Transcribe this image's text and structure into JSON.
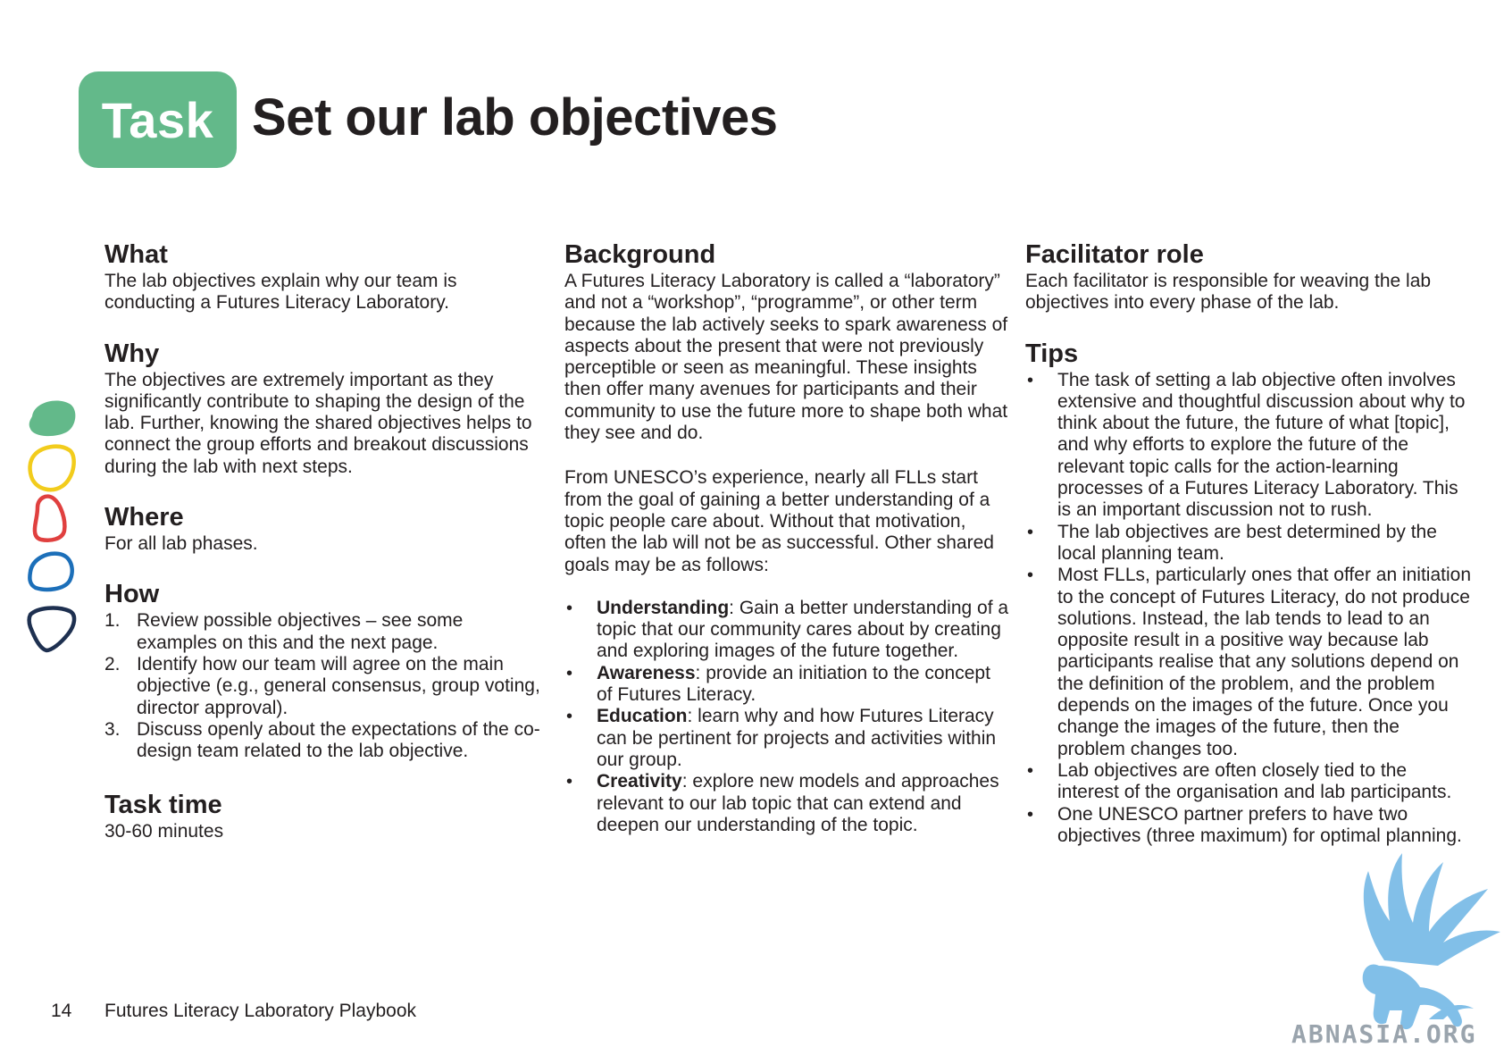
{
  "header": {
    "badge": "Task",
    "title": "Set our lab objectives"
  },
  "what": {
    "heading": "What",
    "text": "The lab objectives explain why our team is conducting a Futures Literacy Laboratory."
  },
  "why": {
    "heading": "Why",
    "text": "The objectives are extremely important as they significantly contribute to shaping the design of the lab. Further, knowing the shared objectives helps to connect the group efforts and breakout discussions during the lab with next steps."
  },
  "where": {
    "heading": "Where",
    "text": "For all lab phases."
  },
  "how": {
    "heading": "How",
    "items": [
      {
        "num": "1.",
        "text": "Review possible objectives – see some examples on this and the next page."
      },
      {
        "num": "2.",
        "text": "Identify how our team will agree on the main objective (e.g., general consensus, group voting, director approval)."
      },
      {
        "num": "3.",
        "text": "Discuss openly about the expectations of the co-design team related to the lab objective."
      }
    ]
  },
  "task_time": {
    "heading": "Task time",
    "text": "30-60 minutes"
  },
  "background": {
    "heading": "Background",
    "para1": "A Futures Literacy Laboratory is called a “laboratory” and not a “workshop”, “programme”, or other term because the lab actively seeks to spark awareness of aspects about the present that were not previously perceptible or seen as meaningful. These insights then offer many avenues for participants and their community to use the future more to shape both what they see and do.",
    "para2": "From UNESCO’s experience, nearly all FLLs start from the goal of gaining a better understanding of a topic people care about. Without that motivation, often the lab will not be as successful. Other shared goals may be as follows:",
    "bullet": "•",
    "items": [
      {
        "term": "Understanding",
        "text": ": Gain a better understanding of a topic that our community cares about by creating and exploring images of the future together."
      },
      {
        "term": "Awareness",
        "text": ": provide an initiation to the concept of Futures Literacy."
      },
      {
        "term": "Education",
        "text": ": learn why and how Futures Literacy can be pertinent for projects and activities within our group."
      },
      {
        "term": "Creativity",
        "text": ": explore new models and approaches relevant to our lab topic that can extend and deepen our understanding of the topic."
      }
    ]
  },
  "facilitator": {
    "heading": "Facilitator role",
    "text": "Each facilitator is responsible for weaving the lab objectives into every phase of the lab."
  },
  "tips": {
    "heading": "Tips",
    "bullet": "•",
    "items": [
      "The task of setting a lab objective often involves extensive and thoughtful discussion about why to think about the future, the future of what [topic], and why efforts to explore the future of the relevant topic calls for the action-learning processes of a Futures Literacy Laboratory. This is an important discussion not to rush.",
      "The lab objectives are best determined by the local planning team.",
      "Most FLLs, particularly ones that offer an initiation to the concept of Futures Literacy, do not produce solutions. Instead, the lab tends to lead to an opposite result in a positive way because lab participants realise that any solutions depend on the definition of the problem, and the problem depends on the images of the future. Once you change the images of the future, then the problem changes too.",
      "Lab objectives are often closely tied to the interest of the organisation and lab participants.",
      "One UNESCO partner prefers to have two objectives (three maximum) for optimal planning."
    ]
  },
  "footer": {
    "page_number": "14",
    "title": "Futures Literacy Laboratory Playbook"
  },
  "watermark": {
    "text": "ABNASIA.ORG"
  },
  "colors": {
    "badge": "#63b98a",
    "shape_green": "#63b98a",
    "shape_yellow": "#f2cc1c",
    "shape_red": "#e0403f",
    "shape_blue": "#1c6fb9",
    "shape_navy": "#1e3050",
    "watermark_blue": "#6cb4e4"
  }
}
